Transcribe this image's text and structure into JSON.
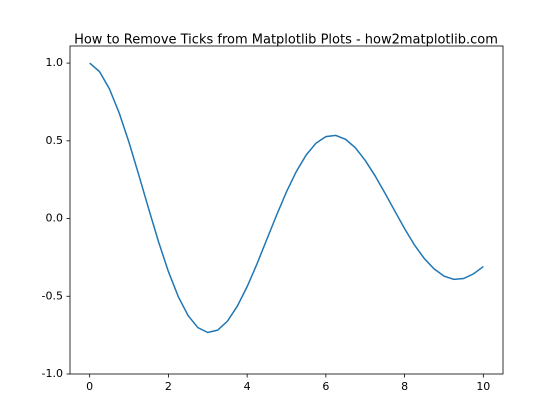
{
  "chart_data": {
    "type": "line",
    "title": "How to Remove Ticks from Matplotlib Plots - how2matplotlib.com",
    "x": [
      0,
      0.25,
      0.5,
      0.75,
      1,
      1.25,
      1.5,
      1.75,
      2,
      2.25,
      2.5,
      2.75,
      3,
      3.25,
      3.5,
      3.75,
      4,
      4.25,
      4.5,
      4.75,
      5,
      5.25,
      5.5,
      5.75,
      6,
      6.25,
      6.5,
      6.75,
      7,
      7.25,
      7.5,
      7.75,
      8,
      8.25,
      8.5,
      8.75,
      9,
      9.25,
      9.5,
      9.75,
      10
    ],
    "series": [
      {
        "color": "#1f77b4",
        "values": [
          1.0,
          0.945,
          0.835,
          0.679,
          0.489,
          0.278,
          0.061,
          -0.15,
          -0.341,
          -0.502,
          -0.624,
          -0.702,
          -0.733,
          -0.718,
          -0.66,
          -0.564,
          -0.438,
          -0.292,
          -0.134,
          0.023,
          0.172,
          0.303,
          0.409,
          0.485,
          0.527,
          0.535,
          0.51,
          0.455,
          0.374,
          0.275,
          0.164,
          0.049,
          -0.065,
          -0.17,
          -0.257,
          -0.324,
          -0.37,
          -0.391,
          -0.386,
          -0.356,
          -0.309
        ]
      }
    ],
    "xlim": [
      -0.5,
      10.5
    ],
    "ylim": [
      -1.0,
      1.11
    ],
    "xticks": [
      0,
      2,
      4,
      6,
      8,
      10
    ],
    "yticks": [
      {
        "value": 1.0,
        "label": "1.0"
      },
      {
        "value": 0.5,
        "label": "0.5"
      },
      {
        "value": 0.0,
        "label": "0.0"
      },
      {
        "value": -0.5,
        "label": "-0.5"
      },
      {
        "value": -1.0,
        "label": "-1.0"
      }
    ],
    "grid": false
  }
}
